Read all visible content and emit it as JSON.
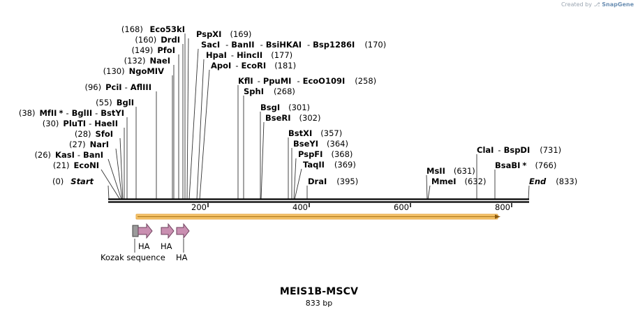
{
  "credit": {
    "prefix": "Created by",
    "brand": "SnapGene"
  },
  "title": "MEIS1B-MSCV",
  "length_label": "833 bp",
  "sites": [
    {
      "pos": "(168)",
      "names": [
        "Eco53kI"
      ]
    },
    {
      "pos": "(160)",
      "names": [
        "DrdI"
      ]
    },
    {
      "pos": "(149)",
      "names": [
        "PfoI"
      ]
    },
    {
      "pos": "(132)",
      "names": [
        "NaeI"
      ]
    },
    {
      "pos": "(130)",
      "names": [
        "NgoMIV"
      ]
    },
    {
      "pos": "(96)",
      "names": [
        "PciI",
        "AflIII"
      ]
    },
    {
      "pos": "(55)",
      "names": [
        "BglI"
      ]
    },
    {
      "pos": "(38)",
      "names": [
        "MfII",
        "BglII",
        "BstYI"
      ],
      "star": "*"
    },
    {
      "pos": "(30)",
      "names": [
        "PluTI",
        "HaeII"
      ]
    },
    {
      "pos": "(28)",
      "names": [
        "SfoI"
      ]
    },
    {
      "pos": "(27)",
      "names": [
        "NarI"
      ]
    },
    {
      "pos": "(26)",
      "names": [
        "KasI",
        "BanI"
      ]
    },
    {
      "pos": "(21)",
      "names": [
        "EcoNI"
      ]
    },
    {
      "pos": "(0)",
      "names": [
        "Start"
      ]
    },
    {
      "pos": "(169)",
      "names": [
        "PspXI"
      ]
    },
    {
      "pos": "(170)",
      "names": [
        "SacI",
        "BanII",
        "BsiHKAI",
        "Bsp1286I"
      ]
    },
    {
      "pos": "(177)",
      "names": [
        "HpaI",
        "HincII"
      ]
    },
    {
      "pos": "(181)",
      "names": [
        "ApoI",
        "EcoRI"
      ]
    },
    {
      "pos": "(258)",
      "names": [
        "KflI",
        "PpuMI",
        "EcoO109I"
      ]
    },
    {
      "pos": "(268)",
      "names": [
        "SphI"
      ]
    },
    {
      "pos": "(301)",
      "names": [
        "BsgI"
      ]
    },
    {
      "pos": "(302)",
      "names": [
        "BseRI"
      ]
    },
    {
      "pos": "(357)",
      "names": [
        "BstXI"
      ]
    },
    {
      "pos": "(364)",
      "names": [
        "BseYI"
      ]
    },
    {
      "pos": "(368)",
      "names": [
        "PspFI"
      ]
    },
    {
      "pos": "(369)",
      "names": [
        "TaqII"
      ]
    },
    {
      "pos": "(395)",
      "names": [
        "DraI"
      ]
    },
    {
      "pos": "(631)",
      "names": [
        "MsII"
      ]
    },
    {
      "pos": "(632)",
      "names": [
        "MmeI"
      ]
    },
    {
      "pos": "(731)",
      "names": [
        "ClaI",
        "BspDI"
      ]
    },
    {
      "pos": "(766)",
      "names": [
        "BsaBI"
      ],
      "star": "*"
    },
    {
      "pos": "(833)",
      "names": [
        "End"
      ]
    }
  ],
  "ruler": {
    "ticks": [
      "200",
      "400",
      "600",
      "800"
    ]
  },
  "features": {
    "ha1": "HA",
    "ha2": "HA",
    "ha3": "HA",
    "kozak": "Kozak sequence"
  },
  "colors": {
    "orf_fill": "#f5c36a",
    "orf_edge": "#b07a1e",
    "ha_fill": "#c98fb1",
    "ha_edge": "#6d3f5c",
    "kozak_fill": "#9a9a9a"
  }
}
